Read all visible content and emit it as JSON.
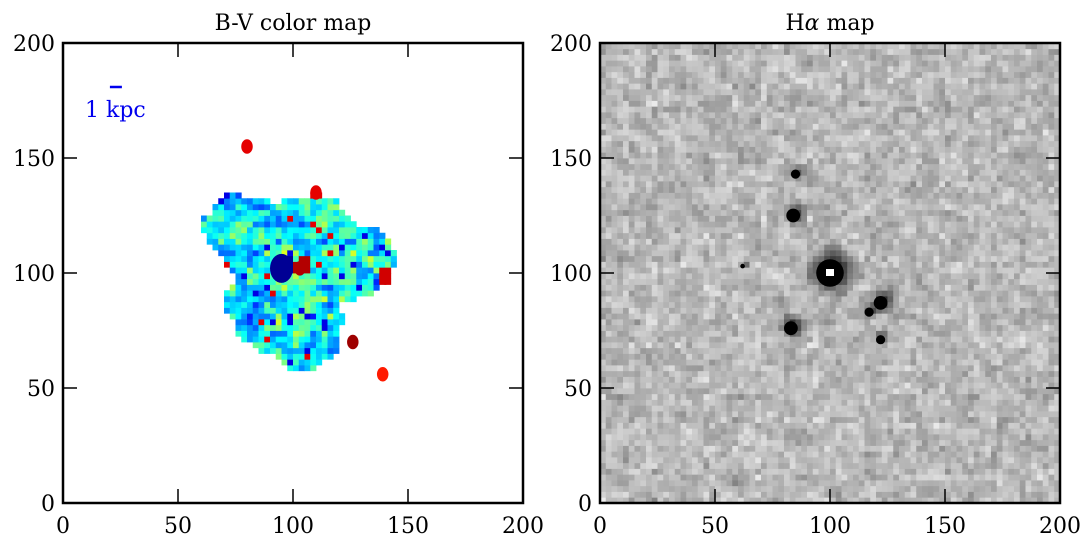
{
  "chart_data": [
    {
      "type": "heatmap",
      "title": "B-V color map",
      "xlabel": "",
      "ylabel": "",
      "xlim": [
        0,
        200
      ],
      "ylim": [
        0,
        200
      ],
      "xticks": [
        "0",
        "50",
        "100",
        "150",
        "200"
      ],
      "yticks": [
        "0",
        "50",
        "100",
        "150",
        "200"
      ],
      "colormap": "jet",
      "scale_bar": {
        "label": "1 kpc",
        "color": "#0000ee",
        "center_data": [
          23,
          180
        ]
      },
      "galaxy_center": [
        100,
        100
      ],
      "features": [
        {
          "kind": "blue-core",
          "x": 95,
          "y": 102,
          "level": 0.02
        },
        {
          "kind": "red-knot",
          "x": 103,
          "y": 102,
          "level": 0.95
        },
        {
          "kind": "red-knot",
          "x": 126,
          "y": 70,
          "level": 0.97
        },
        {
          "kind": "red-knot",
          "x": 110,
          "y": 135,
          "level": 0.9
        },
        {
          "kind": "red-knot",
          "x": 80,
          "y": 155,
          "level": 0.9
        },
        {
          "kind": "red-knot",
          "x": 140,
          "y": 98,
          "level": 0.92
        },
        {
          "kind": "red-knot",
          "x": 139,
          "y": 56,
          "level": 0.85
        }
      ]
    },
    {
      "type": "heatmap",
      "title": "Hα map",
      "title_base": "H",
      "title_symbol": "α",
      "title_rest": " map",
      "xlabel": "",
      "ylabel": "",
      "xlim": [
        0,
        200
      ],
      "ylim": [
        0,
        200
      ],
      "xticks": [
        "0",
        "50",
        "100",
        "150",
        "200"
      ],
      "yticks": [
        "0",
        "50",
        "100",
        "150",
        "200"
      ],
      "colormap": "gray_r",
      "sources": [
        {
          "x": 100,
          "y": 100,
          "intensity": 1.0,
          "radius": 6
        },
        {
          "x": 122,
          "y": 87,
          "intensity": 0.85,
          "radius": 3
        },
        {
          "x": 117,
          "y": 83,
          "intensity": 0.7,
          "radius": 2
        },
        {
          "x": 83,
          "y": 76,
          "intensity": 0.85,
          "radius": 3
        },
        {
          "x": 84,
          "y": 125,
          "intensity": 0.75,
          "radius": 3
        },
        {
          "x": 122,
          "y": 71,
          "intensity": 0.6,
          "radius": 2
        },
        {
          "x": 85,
          "y": 143,
          "intensity": 0.55,
          "radius": 2
        },
        {
          "x": 62,
          "y": 103,
          "intensity": 0.6,
          "radius": 1
        }
      ]
    }
  ]
}
